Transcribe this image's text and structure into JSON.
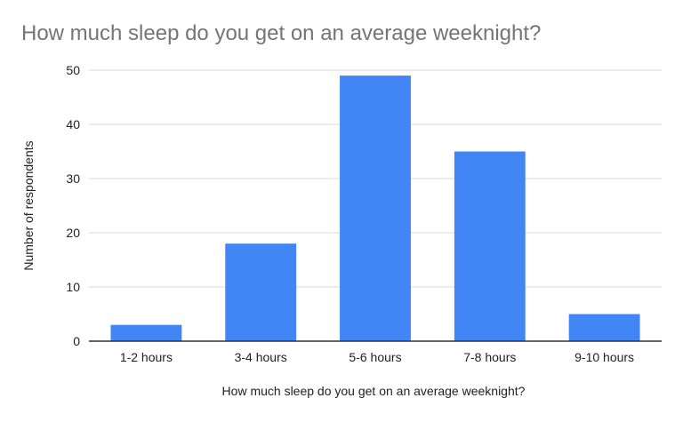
{
  "chart_data": {
    "type": "bar",
    "title": "How much sleep do you get on an average weeknight?",
    "xlabel": "How much sleep do you get on an average weeknight?",
    "ylabel": "Number of respondents",
    "categories": [
      "1-2 hours",
      "3-4 hours",
      "5-6 hours",
      "7-8 hours",
      "9-10 hours"
    ],
    "values": [
      3,
      18,
      49,
      35,
      5
    ],
    "ylim": [
      0,
      50
    ],
    "yticks": [
      0,
      10,
      20,
      30,
      40,
      50
    ],
    "grid": true,
    "bar_color": "#4285f4",
    "grid_color": "#d9d9d9",
    "axis_color": "#333333"
  }
}
